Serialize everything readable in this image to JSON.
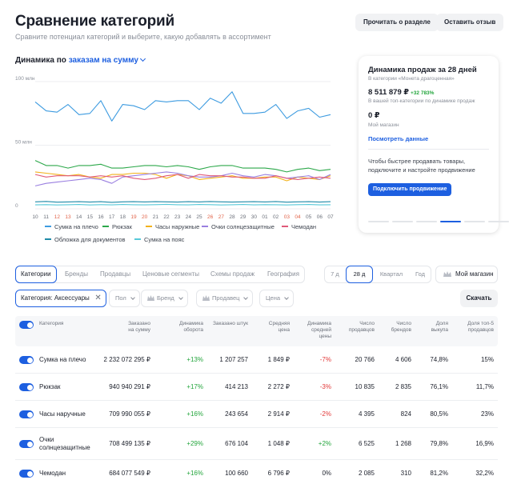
{
  "header": {
    "title": "Сравнение категорий",
    "subtitle": "Сравните потенциал категорий и выберите, какую добавлять в ассортимент",
    "read_section": "Прочитать о разделе",
    "feedback": "Оставить отзыв"
  },
  "chart_section": {
    "prefix": "Динамика по ",
    "metric": "заказам на сумму"
  },
  "chart_data": {
    "type": "line",
    "title": "Динамика по заказам на сумму",
    "ylim": [
      0,
      100
    ],
    "y_ticks": [
      "100 млн",
      "50 млн",
      "0"
    ],
    "x": [
      "10",
      "11",
      "12",
      "13",
      "14",
      "15",
      "16",
      "17",
      "18",
      "19",
      "20",
      "21",
      "22",
      "23",
      "24",
      "25",
      "26",
      "27",
      "28",
      "29",
      "30",
      "01",
      "02",
      "03",
      "04",
      "05",
      "06",
      "07"
    ],
    "x_highlight": [
      "12",
      "13",
      "19",
      "20",
      "26",
      "27",
      "03",
      "04"
    ],
    "series": [
      {
        "name": "Сумка на плечо",
        "color": "#3d9be0",
        "values": [
          84,
          77,
          76,
          82,
          74,
          75,
          85,
          69,
          82,
          81,
          78,
          85,
          84,
          85,
          85,
          78,
          87,
          83,
          92,
          75,
          75,
          76,
          82,
          71,
          77,
          79,
          72,
          74
        ]
      },
      {
        "name": "Рюкзак",
        "color": "#2ca84a",
        "values": [
          38,
          34,
          34,
          32,
          34,
          34,
          35,
          32,
          32,
          33,
          34,
          34,
          33,
          34,
          33,
          31,
          33,
          34,
          34,
          32,
          32,
          32,
          31,
          29,
          31,
          32,
          30,
          31
        ]
      },
      {
        "name": "Часы наружные",
        "color": "#f2b11b",
        "values": [
          29,
          28,
          27,
          26,
          27,
          25,
          24,
          27,
          27,
          28,
          28,
          27,
          24,
          27,
          26,
          23,
          24,
          25,
          26,
          24,
          24,
          25,
          25,
          22,
          25,
          24,
          23,
          26
        ]
      },
      {
        "name": "Очки солнцезащитные",
        "color": "#9a7fe0",
        "values": [
          18,
          20,
          21,
          22,
          23,
          24,
          23,
          20,
          25,
          26,
          27,
          28,
          29,
          28,
          26,
          25,
          25,
          26,
          28,
          26,
          25,
          27,
          26,
          24,
          25,
          26,
          23,
          27
        ]
      },
      {
        "name": "Чемодан",
        "color": "#e05a7a",
        "values": [
          27,
          25,
          26,
          26,
          26,
          25,
          26,
          25,
          26,
          24,
          23,
          24,
          26,
          27,
          24,
          27,
          26,
          26,
          25,
          25,
          24,
          24,
          26,
          24,
          23,
          24,
          25,
          24
        ]
      },
      {
        "name": "Обложка для документов",
        "color": "#1f8aa8",
        "values": [
          5.5,
          5.8,
          5.2,
          5.4,
          5.6,
          5.3,
          5.6,
          5.1,
          5.5,
          5.6,
          5.4,
          5.6,
          5.5,
          5.3,
          5.6,
          5.4,
          5.7,
          5.5,
          5.3,
          5.5,
          5.6,
          5.4,
          5.7,
          5.2,
          5.5,
          5.6,
          5.3,
          5.6
        ]
      },
      {
        "name": "Сумка на пояс",
        "color": "#57c9d9",
        "values": [
          3.1,
          3.3,
          3.0,
          3.2,
          3.4,
          3.0,
          3.3,
          3.1,
          3.4,
          3.2,
          3.1,
          3.3,
          3.5,
          3.2,
          3.1,
          3.4,
          3.3,
          3.0,
          3.2,
          3.4,
          3.1,
          3.3,
          3.2,
          3.0,
          3.3,
          3.4,
          3.1,
          3.2
        ]
      }
    ]
  },
  "card": {
    "title": "Динамика продаж за 28 дней",
    "category_note": "В категории «Монета драгоценная»",
    "value": "8 511 879 ₽",
    "growth": "+32 783%",
    "top_note": "В вашей топ-категории по динамике продаж",
    "my_value": "0 ₽",
    "my_label": "Мой магазин",
    "link": "Посмотреть данные",
    "promo": "Чтобы быстрее продавать товары, подключите и настройте продвижение",
    "button": "Подключить продвижение",
    "slides": 6,
    "active_slide": 3
  },
  "tabs": [
    "Категории",
    "Бренды",
    "Продавцы",
    "Ценовые сегменты",
    "Схемы продаж",
    "География"
  ],
  "active_tab": 0,
  "periods": [
    "7 д",
    "28 д",
    "Квартал",
    "Год"
  ],
  "active_period": 1,
  "store_button": "Мой магазин",
  "filters": {
    "chip": "Категория: Аксессуары",
    "gender": "Пол",
    "brand": "Бренд",
    "seller": "Продавец",
    "price": "Цена"
  },
  "download": "Скачать",
  "table": {
    "headers": {
      "category": "Категория",
      "ordered": "Заказано\nна сумму",
      "turnover": "Динамика\nоборота",
      "units": "Заказано штук",
      "avg_price": "Средняя\nцена",
      "avg_price_dyn": "Динамика\nсредней\nцены",
      "sellers": "Число\nпродавцов",
      "brands": "Число\nбрендов",
      "buyout": "Доля\nвыкупа",
      "top5": "Доля топ-5\nпродавцов"
    },
    "rows": [
      {
        "name": "Сумка на плечо",
        "ordered": "2 232 072 295 ₽",
        "turnover": "+13%",
        "units": "1 207 257",
        "price": "1 849 ₽",
        "price_dyn": "-7%",
        "sellers": "20 766",
        "brands": "4 606",
        "buyout": "74,8%",
        "top5": "15%"
      },
      {
        "name": "Рюкзак",
        "ordered": "940 940 291 ₽",
        "turnover": "+17%",
        "units": "414 213",
        "price": "2 272 ₽",
        "price_dyn": "-3%",
        "sellers": "10 835",
        "brands": "2 835",
        "buyout": "76,1%",
        "top5": "11,7%"
      },
      {
        "name": "Часы наручные",
        "ordered": "709 990 055 ₽",
        "turnover": "+16%",
        "units": "243 654",
        "price": "2 914 ₽",
        "price_dyn": "-2%",
        "sellers": "4 395",
        "brands": "824",
        "buyout": "80,5%",
        "top5": "23%"
      },
      {
        "name": "Очки солнцезащитные",
        "ordered": "708 499 135 ₽",
        "turnover": "+29%",
        "units": "676 104",
        "price": "1 048 ₽",
        "price_dyn": "+2%",
        "sellers": "6 525",
        "brands": "1 268",
        "buyout": "79,8%",
        "top5": "16,9%"
      },
      {
        "name": "Чемодан",
        "ordered": "684 077 549 ₽",
        "turnover": "+16%",
        "units": "100 660",
        "price": "6 796 ₽",
        "price_dyn": "0%",
        "sellers": "2 085",
        "brands": "310",
        "buyout": "81,2%",
        "top5": "32,2%"
      }
    ]
  }
}
